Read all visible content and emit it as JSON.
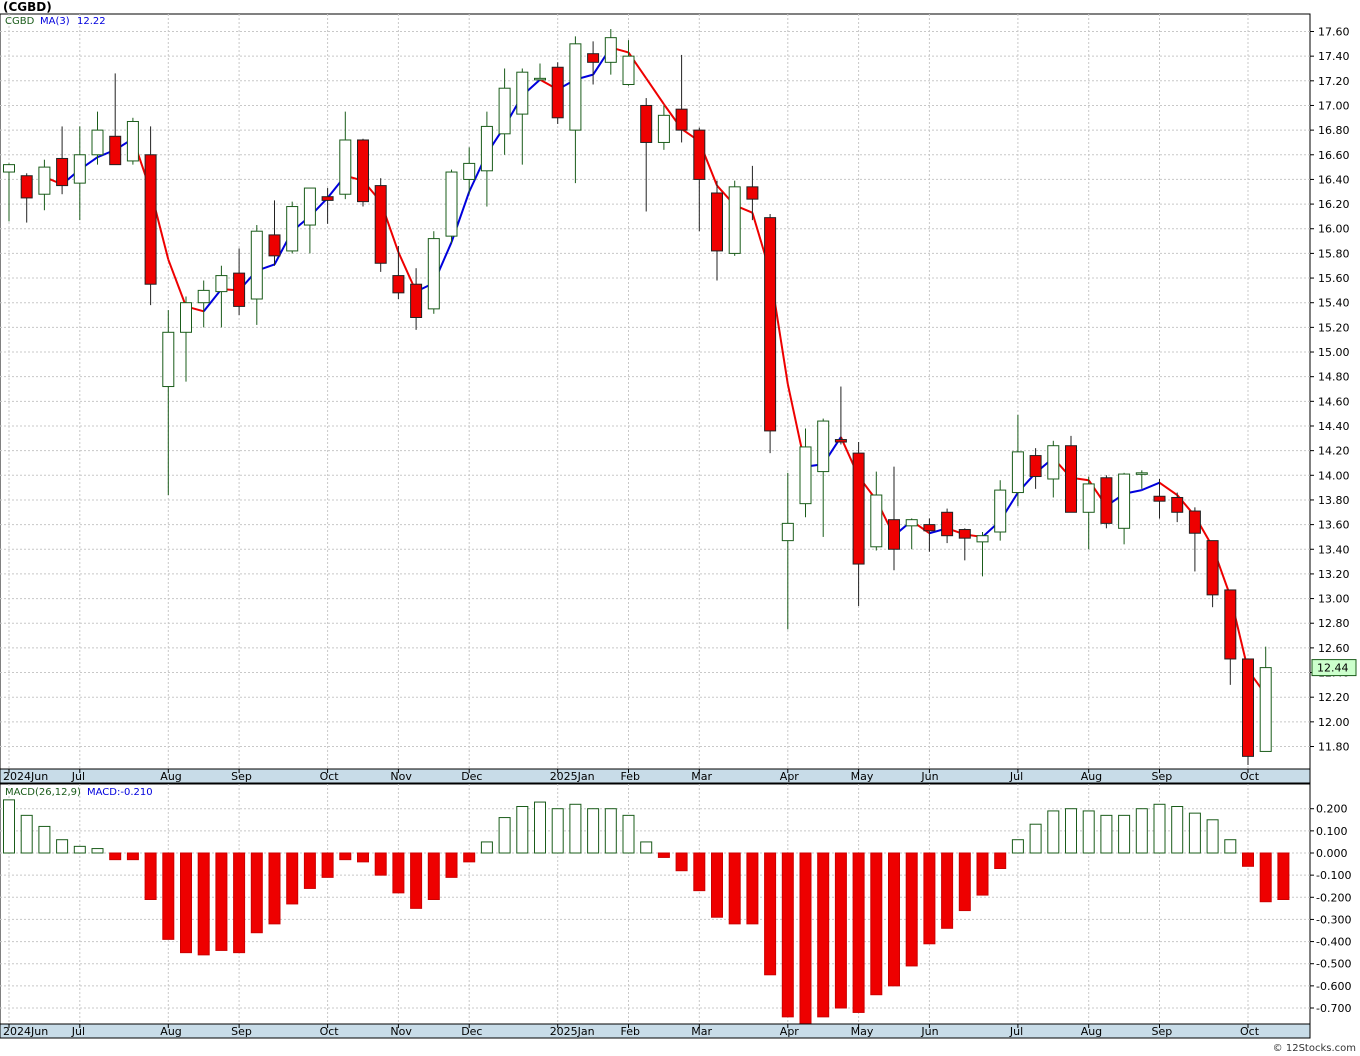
{
  "page": {
    "title": "(CGBD)",
    "credit": "© 12Stocks.com",
    "colors": {
      "up_candle_fill": "#ffffff",
      "up_candle_border": "#1a5c1a",
      "down_candle_fill": "#ee0000",
      "ma_up": "#0000dd",
      "ma_down": "#ee0000",
      "hist_pos": "#1a5c1a",
      "hist_neg": "#ee0000",
      "grid": "#c8c8c8",
      "axis_band": "#c8dce8",
      "last_price_bg": "#ccffcc"
    }
  },
  "chart_data": [
    {
      "type": "candlestick",
      "legend": {
        "symbol": "CGBD",
        "ma_label": "MA(3)",
        "ma_value": "12.22"
      },
      "ylim": [
        11.66,
        17.7
      ],
      "y_ticks": [
        "17.60",
        "17.40",
        "17.20",
        "17.00",
        "16.80",
        "16.60",
        "16.40",
        "16.20",
        "16.00",
        "15.80",
        "15.60",
        "15.40",
        "15.20",
        "15.00",
        "14.80",
        "14.60",
        "14.40",
        "14.20",
        "14.00",
        "13.80",
        "13.60",
        "13.40",
        "13.20",
        "13.00",
        "12.80",
        "12.60",
        "12.40",
        "12.20",
        "12.00",
        "11.80"
      ],
      "last_price": "12.44",
      "x_labels": [
        {
          "label": "2024Jun",
          "index": 0
        },
        {
          "label": "Jul",
          "index": 4
        },
        {
          "label": "Aug",
          "index": 9
        },
        {
          "label": "Sep",
          "index": 13
        },
        {
          "label": "Oct",
          "index": 18
        },
        {
          "label": "Nov",
          "index": 22
        },
        {
          "label": "Dec",
          "index": 26
        },
        {
          "label": "2025Jan",
          "index": 31
        },
        {
          "label": "Feb",
          "index": 35
        },
        {
          "label": "Mar",
          "index": 39
        },
        {
          "label": "Apr",
          "index": 44
        },
        {
          "label": "May",
          "index": 48
        },
        {
          "label": "Jun",
          "index": 52
        },
        {
          "label": "Jul",
          "index": 57
        },
        {
          "label": "Aug",
          "index": 61
        },
        {
          "label": "Sep",
          "index": 65
        },
        {
          "label": "Oct",
          "index": 70
        }
      ],
      "candles": [
        {
          "o": 16.46,
          "h": 16.53,
          "l": 16.06,
          "c": 16.52
        },
        {
          "o": 16.43,
          "h": 16.45,
          "l": 16.05,
          "c": 16.25
        },
        {
          "o": 16.28,
          "h": 16.56,
          "l": 16.15,
          "c": 16.5
        },
        {
          "o": 16.57,
          "h": 16.83,
          "l": 16.28,
          "c": 16.35
        },
        {
          "o": 16.37,
          "h": 16.83,
          "l": 16.07,
          "c": 16.6
        },
        {
          "o": 16.6,
          "h": 16.95,
          "l": 16.52,
          "c": 16.8
        },
        {
          "o": 16.75,
          "h": 17.26,
          "l": 16.53,
          "c": 16.52
        },
        {
          "o": 16.55,
          "h": 16.9,
          "l": 16.52,
          "c": 16.87
        },
        {
          "o": 16.6,
          "h": 16.83,
          "l": 15.38,
          "c": 15.55
        },
        {
          "o": 14.72,
          "h": 15.34,
          "l": 13.84,
          "c": 15.16
        },
        {
          "o": 15.16,
          "h": 15.45,
          "l": 14.76,
          "c": 15.4
        },
        {
          "o": 15.4,
          "h": 15.58,
          "l": 15.2,
          "c": 15.5
        },
        {
          "o": 15.49,
          "h": 15.7,
          "l": 15.2,
          "c": 15.62
        },
        {
          "o": 15.64,
          "h": 15.84,
          "l": 15.3,
          "c": 15.37
        },
        {
          "o": 15.43,
          "h": 16.03,
          "l": 15.22,
          "c": 15.98
        },
        {
          "o": 15.95,
          "h": 16.23,
          "l": 15.7,
          "c": 15.78
        },
        {
          "o": 15.82,
          "h": 16.22,
          "l": 15.8,
          "c": 16.18
        },
        {
          "o": 16.03,
          "h": 16.33,
          "l": 15.8,
          "c": 16.33
        },
        {
          "o": 16.26,
          "h": 16.33,
          "l": 16.04,
          "c": 16.23
        },
        {
          "o": 16.28,
          "h": 16.95,
          "l": 16.24,
          "c": 16.72
        },
        {
          "o": 16.72,
          "h": 16.73,
          "l": 16.18,
          "c": 16.22
        },
        {
          "o": 16.35,
          "h": 16.41,
          "l": 15.65,
          "c": 15.72
        },
        {
          "o": 15.62,
          "h": 15.86,
          "l": 15.43,
          "c": 15.48
        },
        {
          "o": 15.55,
          "h": 15.68,
          "l": 15.18,
          "c": 15.28
        },
        {
          "o": 15.35,
          "h": 15.98,
          "l": 15.31,
          "c": 15.92
        },
        {
          "o": 15.94,
          "h": 16.48,
          "l": 15.88,
          "c": 16.46
        },
        {
          "o": 16.4,
          "h": 16.66,
          "l": 16.28,
          "c": 16.53
        },
        {
          "o": 16.47,
          "h": 16.95,
          "l": 16.18,
          "c": 16.83
        },
        {
          "o": 16.77,
          "h": 17.3,
          "l": 16.6,
          "c": 17.14
        },
        {
          "o": 16.93,
          "h": 17.3,
          "l": 16.52,
          "c": 17.27
        },
        {
          "o": 17.21,
          "h": 17.34,
          "l": 17.2,
          "c": 17.22
        },
        {
          "o": 17.31,
          "h": 17.35,
          "l": 16.85,
          "c": 16.9
        },
        {
          "o": 16.8,
          "h": 17.56,
          "l": 16.37,
          "c": 17.5
        },
        {
          "o": 17.42,
          "h": 17.52,
          "l": 17.17,
          "c": 17.35
        },
        {
          "o": 17.35,
          "h": 17.62,
          "l": 17.25,
          "c": 17.55
        },
        {
          "o": 17.17,
          "h": 17.53,
          "l": 17.16,
          "c": 17.4
        },
        {
          "o": 17.0,
          "h": 17.06,
          "l": 16.14,
          "c": 16.7
        },
        {
          "o": 16.7,
          "h": 17.0,
          "l": 16.64,
          "c": 16.92
        },
        {
          "o": 16.97,
          "h": 17.41,
          "l": 16.7,
          "c": 16.8
        },
        {
          "o": 16.8,
          "h": 16.82,
          "l": 15.98,
          "c": 16.4
        },
        {
          "o": 16.29,
          "h": 16.39,
          "l": 15.58,
          "c": 15.82
        },
        {
          "o": 15.8,
          "h": 16.39,
          "l": 15.78,
          "c": 16.34
        },
        {
          "o": 16.34,
          "h": 16.51,
          "l": 16.07,
          "c": 16.24
        },
        {
          "o": 16.09,
          "h": 16.12,
          "l": 14.18,
          "c": 14.36
        },
        {
          "o": 13.47,
          "h": 14.02,
          "l": 12.75,
          "c": 13.61
        },
        {
          "o": 13.77,
          "h": 14.38,
          "l": 13.66,
          "c": 14.23
        },
        {
          "o": 14.03,
          "h": 14.46,
          "l": 13.5,
          "c": 14.44
        },
        {
          "o": 14.29,
          "h": 14.72,
          "l": 14.25,
          "c": 14.27
        },
        {
          "o": 14.18,
          "h": 14.27,
          "l": 12.94,
          "c": 13.28
        },
        {
          "o": 13.42,
          "h": 14.03,
          "l": 13.39,
          "c": 13.84
        },
        {
          "o": 13.64,
          "h": 14.07,
          "l": 13.23,
          "c": 13.4
        },
        {
          "o": 13.59,
          "h": 13.65,
          "l": 13.4,
          "c": 13.64
        },
        {
          "o": 13.6,
          "h": 13.65,
          "l": 13.38,
          "c": 13.55
        },
        {
          "o": 13.7,
          "h": 13.73,
          "l": 13.45,
          "c": 13.51
        },
        {
          "o": 13.56,
          "h": 13.57,
          "l": 13.31,
          "c": 13.49
        },
        {
          "o": 13.46,
          "h": 13.54,
          "l": 13.18,
          "c": 13.51
        },
        {
          "o": 13.54,
          "h": 13.96,
          "l": 13.47,
          "c": 13.88
        },
        {
          "o": 13.86,
          "h": 14.49,
          "l": 13.75,
          "c": 14.19
        },
        {
          "o": 14.16,
          "h": 14.22,
          "l": 13.89,
          "c": 13.99
        },
        {
          "o": 13.97,
          "h": 14.28,
          "l": 13.82,
          "c": 14.24
        },
        {
          "o": 14.24,
          "h": 14.32,
          "l": 13.71,
          "c": 13.7
        },
        {
          "o": 13.7,
          "h": 13.99,
          "l": 13.4,
          "c": 13.93
        },
        {
          "o": 13.98,
          "h": 14.0,
          "l": 13.57,
          "c": 13.61
        },
        {
          "o": 13.57,
          "h": 14.02,
          "l": 13.44,
          "c": 14.01
        },
        {
          "o": 14.01,
          "h": 14.04,
          "l": 13.89,
          "c": 14.02
        },
        {
          "o": 13.83,
          "h": 13.97,
          "l": 13.65,
          "c": 13.79
        },
        {
          "o": 13.82,
          "h": 13.86,
          "l": 13.62,
          "c": 13.7
        },
        {
          "o": 13.71,
          "h": 13.74,
          "l": 13.22,
          "c": 13.53
        },
        {
          "o": 13.47,
          "h": 13.47,
          "l": 12.93,
          "c": 13.03
        },
        {
          "o": 13.07,
          "h": 13.07,
          "l": 12.3,
          "c": 12.51
        },
        {
          "o": 12.51,
          "h": 12.51,
          "l": 11.65,
          "c": 11.72
        },
        {
          "o": 11.76,
          "h": 12.61,
          "l": 11.76,
          "c": 12.44
        }
      ],
      "ma": [
        null,
        null,
        16.42,
        16.36,
        16.48,
        16.58,
        16.64,
        16.73,
        16.31,
        15.75,
        15.37,
        15.33,
        15.51,
        15.5,
        15.66,
        15.71,
        15.98,
        16.1,
        16.25,
        16.43,
        16.39,
        16.22,
        15.81,
        15.49,
        15.56,
        15.89,
        16.3,
        16.61,
        16.83,
        17.08,
        17.21,
        17.13,
        17.21,
        17.25,
        17.47,
        17.43,
        17.22,
        17.01,
        16.81,
        16.71,
        16.35,
        16.19,
        16.13,
        15.65,
        14.74,
        14.07,
        14.09,
        14.31,
        13.99,
        13.8,
        13.51,
        13.63,
        13.53,
        13.57,
        13.52,
        13.5,
        13.63,
        13.86,
        14.02,
        14.14,
        13.98,
        13.96,
        13.75,
        13.85,
        13.88,
        13.94,
        13.84,
        13.67,
        13.42,
        13.02,
        12.42,
        12.22
      ]
    },
    {
      "type": "bar",
      "legend": {
        "label": "MACD(26,12,9)",
        "value_label": "MACD:-0.210"
      },
      "ylim": [
        -0.8,
        0.25
      ],
      "y_ticks": [
        "0.200",
        "0.100",
        "0.000",
        "-0.100",
        "-0.200",
        "-0.300",
        "-0.400",
        "-0.500",
        "-0.600",
        "-0.700"
      ],
      "values": [
        0.24,
        0.17,
        0.12,
        0.06,
        0.03,
        0.02,
        -0.03,
        -0.03,
        -0.21,
        -0.39,
        -0.45,
        -0.46,
        -0.44,
        -0.45,
        -0.36,
        -0.32,
        -0.23,
        -0.16,
        -0.11,
        -0.03,
        -0.04,
        -0.1,
        -0.18,
        -0.25,
        -0.21,
        -0.11,
        -0.04,
        0.05,
        0.16,
        0.21,
        0.23,
        0.2,
        0.22,
        0.2,
        0.2,
        0.17,
        0.05,
        -0.02,
        -0.08,
        -0.17,
        -0.29,
        -0.32,
        -0.32,
        -0.55,
        -0.74,
        -0.79,
        -0.74,
        -0.7,
        -0.72,
        -0.64,
        -0.6,
        -0.51,
        -0.41,
        -0.34,
        -0.26,
        -0.19,
        -0.07,
        0.06,
        0.13,
        0.19,
        0.2,
        0.19,
        0.17,
        0.17,
        0.2,
        0.22,
        0.21,
        0.18,
        0.15,
        0.06,
        -0.06,
        -0.22,
        -0.21
      ]
    }
  ]
}
